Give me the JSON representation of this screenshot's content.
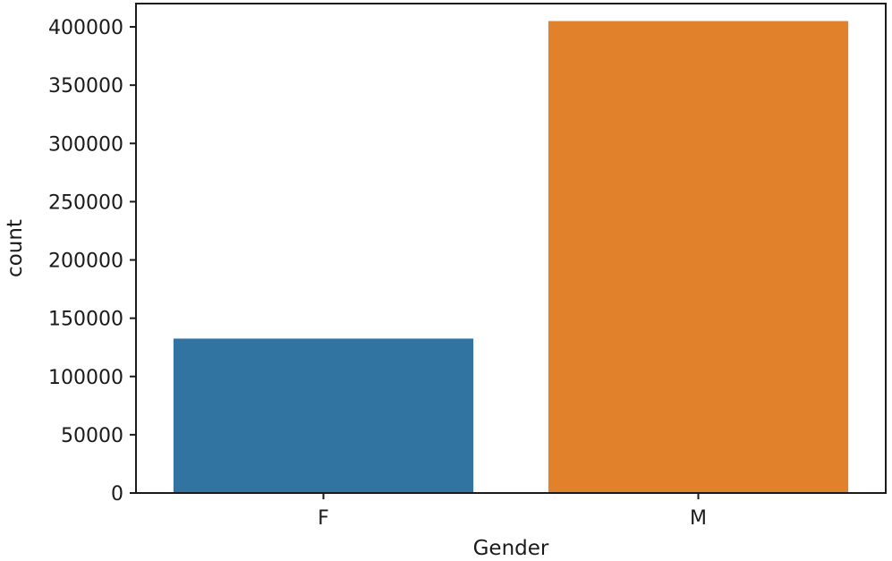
{
  "chart_data": {
    "type": "bar",
    "categories": [
      "F",
      "M"
    ],
    "values": [
      132500,
      405000
    ],
    "colors": [
      "#3274a1",
      "#e1812c"
    ],
    "xlabel": "Gender",
    "ylabel": "count",
    "ylim": [
      0,
      420000
    ],
    "yticks": [
      0,
      50000,
      100000,
      150000,
      200000,
      250000,
      300000,
      350000,
      400000
    ],
    "ytick_labels": [
      "0",
      "50000",
      "100000",
      "150000",
      "200000",
      "250000",
      "300000",
      "350000",
      "400000"
    ],
    "grid": false,
    "spines": "all"
  }
}
